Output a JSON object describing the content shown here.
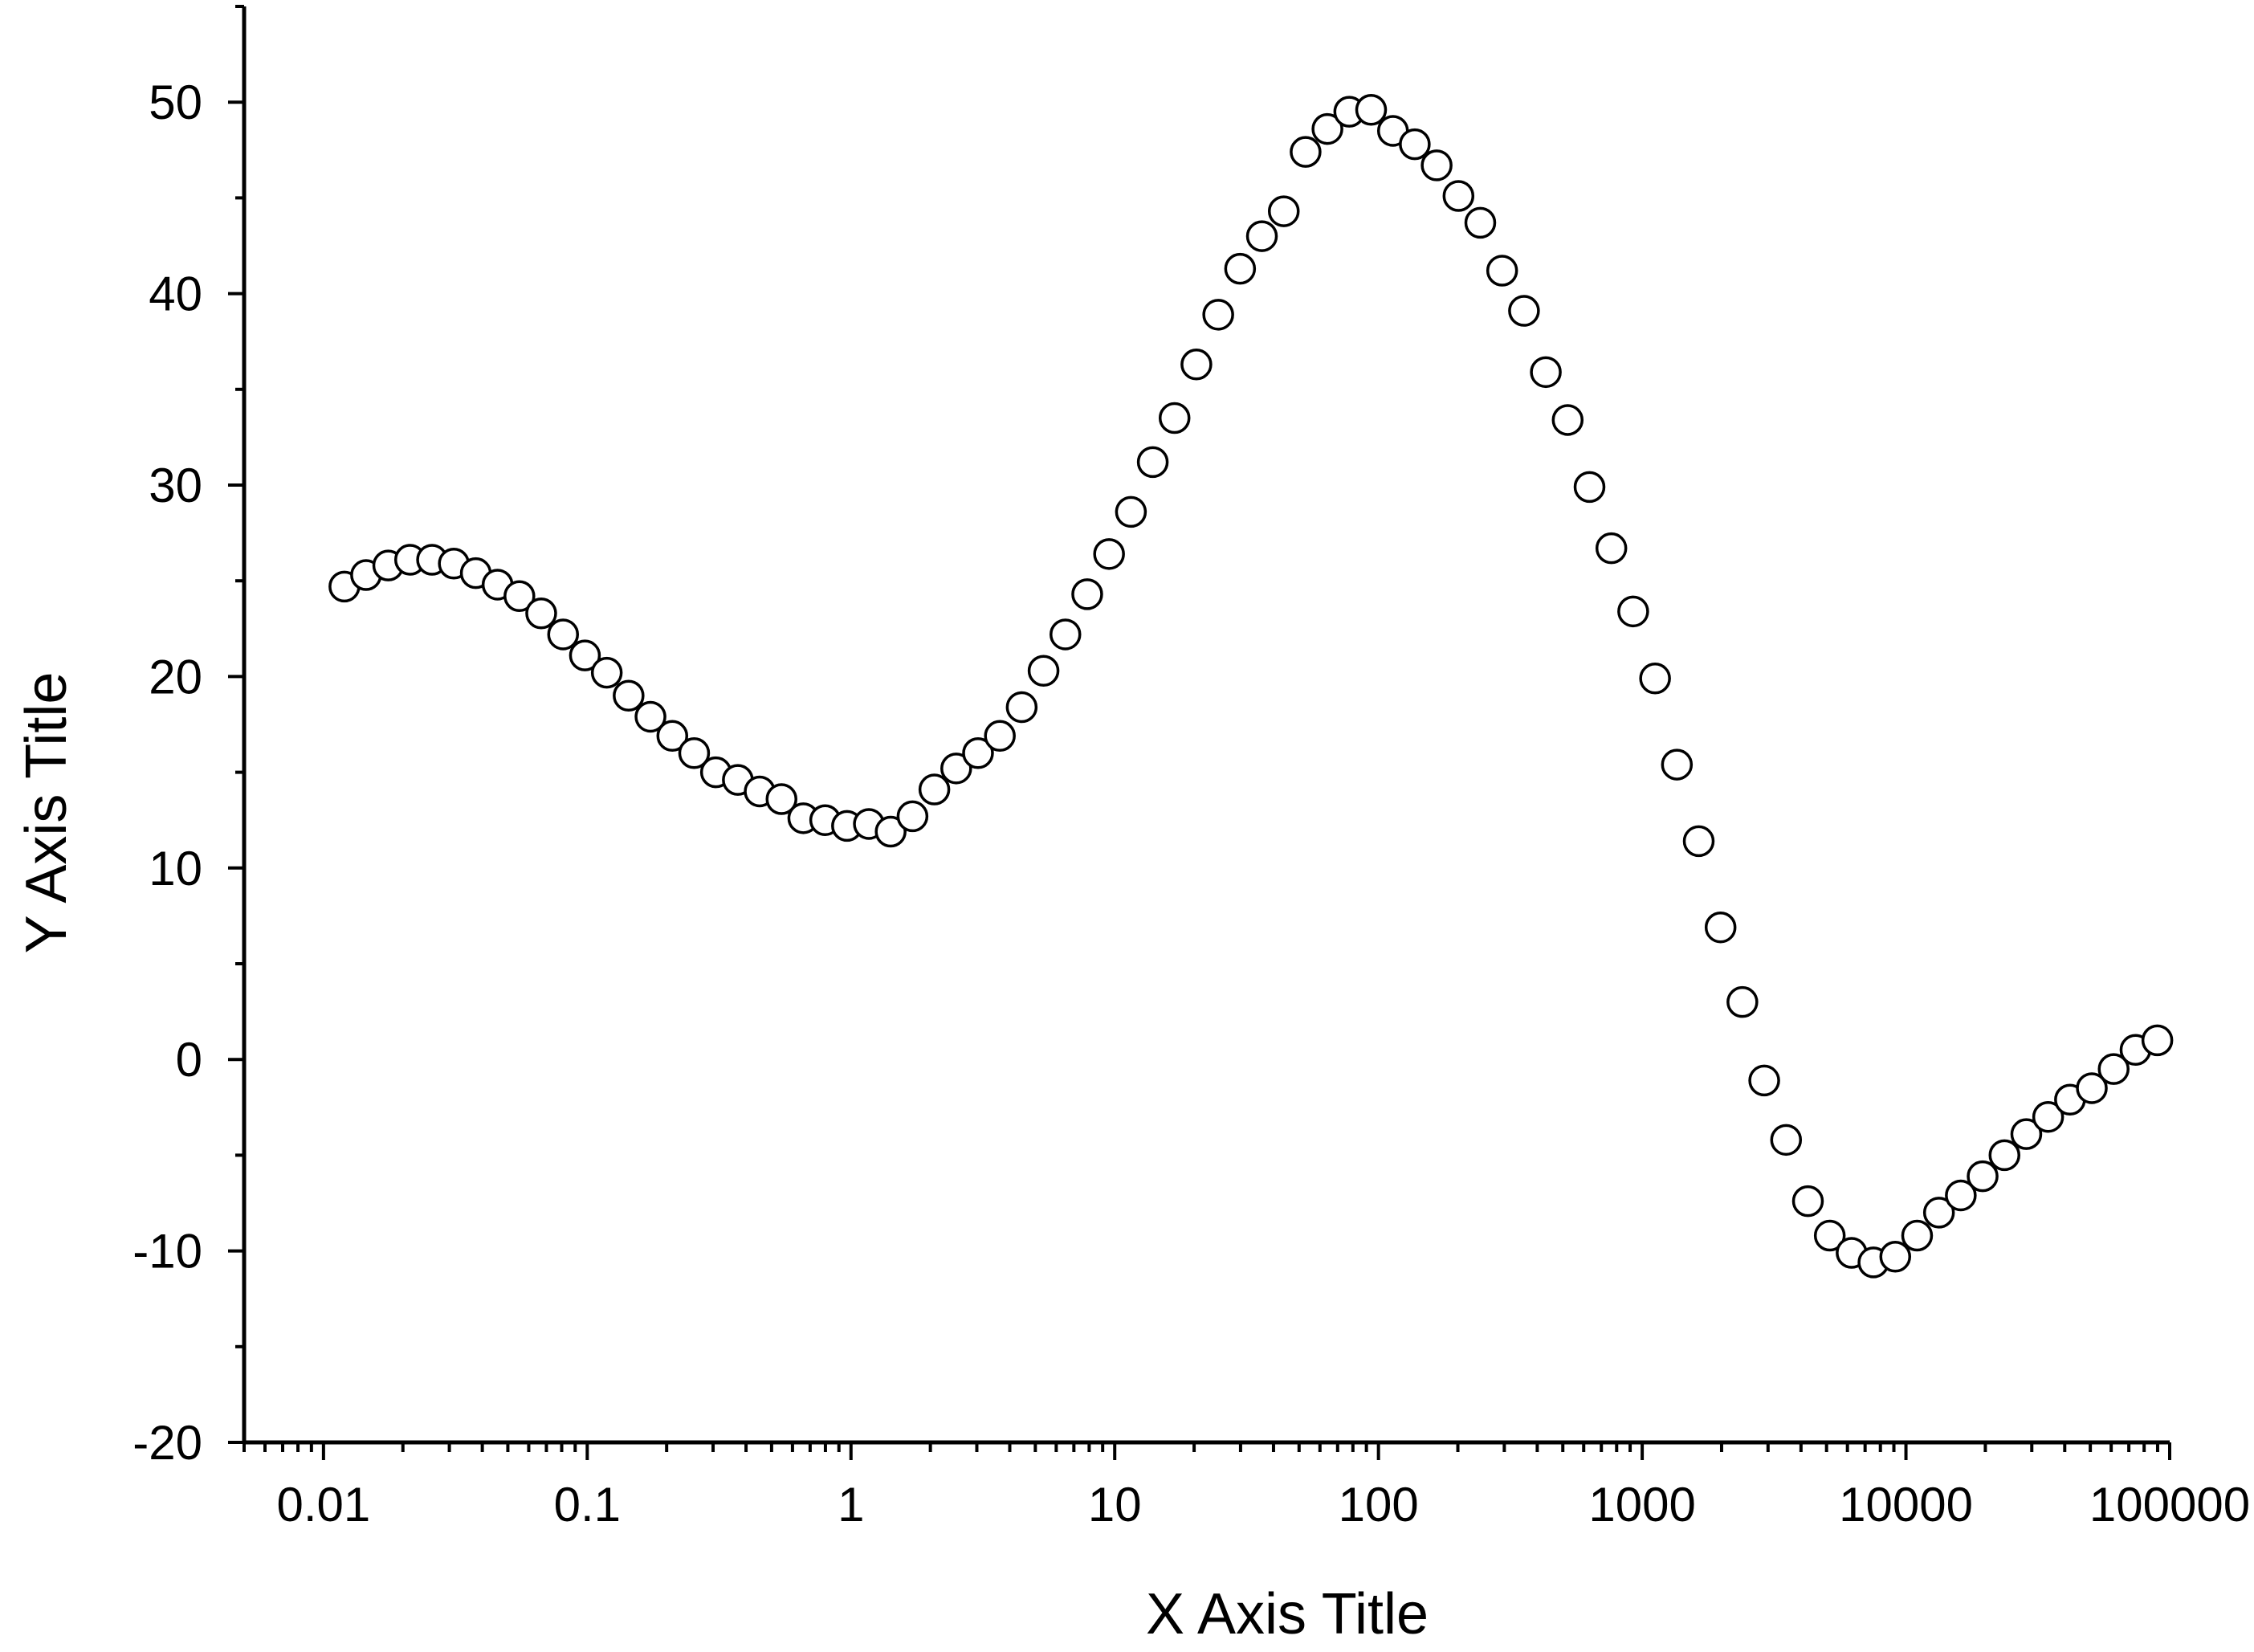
{
  "chart_data": {
    "type": "scatter",
    "title": "",
    "xlabel": "X Axis Title",
    "ylabel": "Y Axis Title",
    "xscale": "log",
    "xlim": [
      0.005,
      100000
    ],
    "ylim": [
      -20,
      55
    ],
    "xticks": [
      0.01,
      0.1,
      1,
      10,
      100,
      1000,
      10000,
      100000
    ],
    "xtick_labels": [
      "0.01",
      "0.1",
      "1",
      "10",
      "100",
      "1000",
      "10000",
      "100000"
    ],
    "yticks": [
      -20,
      -10,
      0,
      10,
      20,
      30,
      40,
      50
    ],
    "ytick_labels": [
      "-20",
      "-10",
      "0",
      "10",
      "20",
      "30",
      "40",
      "50"
    ],
    "grid": false,
    "marker": "open-circle",
    "marker_color": "#000000",
    "series": [
      {
        "name": "",
        "x": [
          0.012,
          0.0145,
          0.0176,
          0.0213,
          0.0258,
          0.0312,
          0.0378,
          0.0457,
          0.0553,
          0.0669,
          0.081,
          0.098,
          0.1186,
          0.1435,
          0.1737,
          0.2102,
          0.2543,
          0.3077,
          0.3724,
          0.4506,
          0.5452,
          0.6597,
          0.7983,
          0.966,
          1.169,
          1.414,
          1.711,
          2.071,
          2.506,
          3.032,
          3.669,
          4.439,
          5.372,
          6.5,
          7.866,
          9.518,
          11.52,
          13.94,
          16.86,
          20.4,
          24.69,
          29.88,
          36.15,
          43.75,
          52.93,
          64.05,
          77.51,
          93.79,
          113.5,
          137.3,
          166.2,
          201.1,
          243.3,
          294.4,
          356.3,
          431.1,
          521.7,
          631.3,
          763.9,
          924.4,
          1119,
          1354,
          1638,
          1982,
          2398,
          2902,
          3512,
          4250,
          5142,
          6222,
          7530,
          9111,
          11025,
          13341,
          16143,
          19534,
          23637,
          28602,
          34610,
          41880,
          50676,
          61321,
          74201,
          89787
        ],
        "y": [
          24.7,
          25.3,
          25.8,
          26.1,
          26.1,
          25.9,
          25.4,
          24.8,
          24.2,
          23.3,
          22.2,
          21.1,
          20.2,
          19.0,
          17.9,
          16.9,
          16.0,
          15.0,
          14.6,
          14.0,
          13.6,
          12.6,
          12.5,
          12.2,
          12.3,
          11.9,
          12.7,
          14.1,
          15.2,
          16.0,
          16.9,
          18.4,
          20.3,
          22.2,
          24.3,
          26.4,
          28.6,
          31.2,
          33.5,
          36.3,
          38.9,
          41.3,
          43.0,
          44.3,
          47.4,
          48.6,
          49.5,
          49.6,
          48.5,
          47.8,
          46.7,
          45.1,
          43.7,
          41.2,
          39.1,
          35.9,
          33.4,
          29.9,
          26.7,
          23.4,
          19.9,
          15.4,
          11.4,
          6.9,
          3.0,
          -1.1,
          -4.2,
          -7.4,
          -9.2,
          -10.1,
          -10.6,
          -10.3,
          -9.2,
          -8.0,
          -7.1,
          -6.1,
          -5.0,
          -3.9,
          -3.0,
          -2.1,
          -1.5,
          -0.5,
          0.5,
          1.0
        ]
      }
    ]
  }
}
